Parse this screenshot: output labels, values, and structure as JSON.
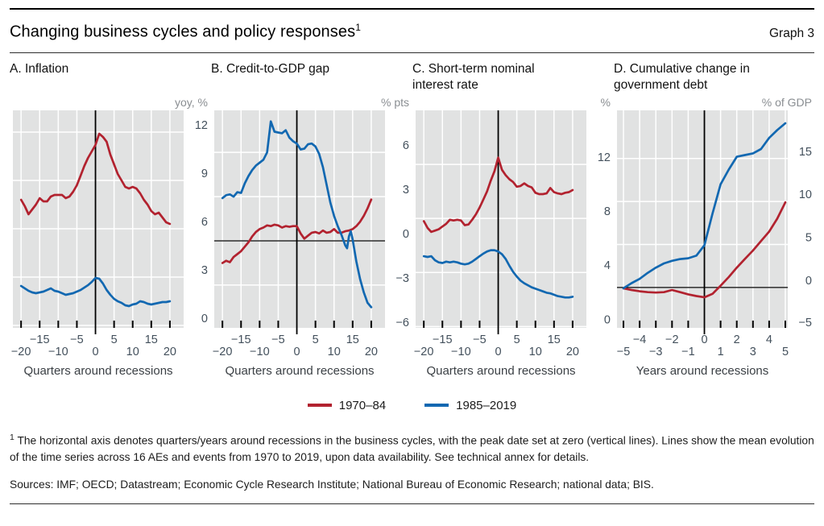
{
  "header": {
    "title": "Changing business cycles and policy responses",
    "title_note": "1",
    "graph_label": "Graph 3"
  },
  "legend": {
    "items": [
      {
        "label": "1970–84",
        "color": "#b2222f"
      },
      {
        "label": "1985–2019",
        "color": "#1268b1"
      }
    ]
  },
  "footnote": {
    "marker": "1",
    "text": "The horizontal axis denotes quarters/years around recessions in the business cycles, with the peak date set at zero (vertical lines). Lines show the mean evolution of the time series across 16 AEs and events from 1970 to 2019, upon data availability. See technical annex for details."
  },
  "sources_line": "Sources: IMF; OECD; Datastream; Economic Cycle Research Institute; National Bureau of Economic Research; national data; BIS.",
  "style": {
    "plot_bg": "#e1e2e2",
    "grid": "#ffffff",
    "axis_label": "#43505c",
    "unit_label": "#8a8e92",
    "red": "#b2222f",
    "blue": "#1268b1"
  },
  "chart_data": [
    {
      "id": "A",
      "type": "line",
      "title": "A. Inflation",
      "unit": "yoy, %",
      "xlabel": "Quarters around recessions",
      "xlim": [
        -22.2,
        23.7
      ],
      "ylim": [
        -0.15,
        13.35
      ],
      "yticks": [
        0,
        3,
        6,
        9,
        12
      ],
      "xticks": [
        -20,
        -15,
        -10,
        -5,
        0,
        5,
        10,
        15,
        20
      ],
      "xtick_rows": [
        [
          -15,
          -5,
          5,
          15
        ],
        [
          -20,
          -10,
          0,
          10,
          20
        ]
      ],
      "zero_line": false,
      "series": [
        {
          "name": "1970–84",
          "color": "#b2222f",
          "x": [
            -20,
            -19,
            -18,
            -17,
            -16,
            -15,
            -14,
            -13,
            -12,
            -11,
            -10,
            -9,
            -8,
            -7,
            -6,
            -5,
            -4,
            -3,
            -2,
            -1,
            0,
            1,
            2,
            3,
            4,
            5,
            6,
            7,
            8,
            9,
            10,
            11,
            12,
            13,
            14,
            15,
            16,
            17,
            18,
            19,
            20
          ],
          "y": [
            7.8,
            7.4,
            6.9,
            7.2,
            7.5,
            7.9,
            7.7,
            7.7,
            8.0,
            8.1,
            8.1,
            8.1,
            7.9,
            8.0,
            8.3,
            8.7,
            9.3,
            9.9,
            10.4,
            10.8,
            11.2,
            11.9,
            11.7,
            11.4,
            10.6,
            10.0,
            9.4,
            9.0,
            8.6,
            8.5,
            8.6,
            8.5,
            8.2,
            7.8,
            7.5,
            7.1,
            6.9,
            7.0,
            6.7,
            6.4,
            6.3
          ]
        },
        {
          "name": "1985–2019",
          "color": "#1268b1",
          "x": [
            -20,
            -19,
            -18,
            -17,
            -16,
            -15,
            -14,
            -13,
            -12,
            -11,
            -10,
            -9,
            -8,
            -7,
            -6,
            -5,
            -4,
            -3,
            -2,
            -1,
            0,
            1,
            2,
            3,
            4,
            5,
            6,
            7,
            8,
            9,
            10,
            11,
            12,
            13,
            14,
            15,
            16,
            17,
            18,
            19,
            20
          ],
          "y": [
            2.45,
            2.3,
            2.15,
            2.05,
            2.0,
            2.05,
            2.1,
            2.2,
            2.3,
            2.15,
            2.1,
            2.0,
            1.9,
            1.95,
            2.0,
            2.1,
            2.2,
            2.35,
            2.5,
            2.7,
            2.95,
            2.9,
            2.6,
            2.2,
            1.9,
            1.65,
            1.5,
            1.4,
            1.25,
            1.2,
            1.3,
            1.35,
            1.5,
            1.45,
            1.35,
            1.3,
            1.35,
            1.4,
            1.45,
            1.45,
            1.5
          ]
        }
      ]
    },
    {
      "id": "B",
      "type": "line",
      "title": "B. Credit-to-GDP gap",
      "unit": "% pts",
      "xlabel": "Quarters around recessions",
      "xlim": [
        -22.2,
        23.7
      ],
      "ylim": [
        -5.9,
        8.85
      ],
      "yticks": [
        -6,
        -3,
        0,
        3,
        6
      ],
      "xticks": [
        -20,
        -15,
        -10,
        -5,
        0,
        5,
        10,
        15,
        20
      ],
      "xtick_rows": [
        [
          -15,
          -5,
          5,
          15
        ],
        [
          -20,
          -10,
          0,
          10,
          20
        ]
      ],
      "zero_line": true,
      "series": [
        {
          "name": "1970–84",
          "color": "#b2222f",
          "x": [
            -20,
            -19,
            -18,
            -17,
            -16,
            -15,
            -14,
            -13,
            -12,
            -11,
            -10,
            -9,
            -8,
            -7,
            -6,
            -5,
            -4,
            -3,
            -2,
            -1,
            0,
            1,
            2,
            3,
            4,
            5,
            6,
            7,
            8,
            9,
            10,
            11,
            12,
            13,
            14,
            15,
            16,
            17,
            18,
            19,
            20
          ],
          "y": [
            -1.5,
            -1.35,
            -1.45,
            -1.1,
            -0.9,
            -0.7,
            -0.4,
            -0.1,
            0.3,
            0.6,
            0.8,
            0.9,
            1.05,
            1.0,
            1.1,
            1.05,
            0.9,
            1.0,
            0.95,
            1.0,
            1.0,
            0.5,
            0.15,
            0.35,
            0.55,
            0.6,
            0.5,
            0.7,
            0.55,
            0.6,
            0.8,
            0.55,
            0.55,
            0.65,
            0.7,
            0.8,
            1.0,
            1.3,
            1.7,
            2.2,
            2.8
          ]
        },
        {
          "name": "1985–2019",
          "color": "#1268b1",
          "x": [
            -20,
            -19,
            -18,
            -17,
            -16,
            -15,
            -14,
            -13,
            -12,
            -11,
            -10,
            -9,
            -8,
            -7,
            -6,
            -5,
            -4,
            -3,
            -2,
            -1,
            0,
            1,
            2,
            3,
            4,
            5,
            6,
            7,
            8,
            9,
            10,
            11,
            12,
            13,
            13.5,
            14,
            14.5,
            15,
            16,
            17,
            18,
            19,
            20
          ],
          "y": [
            2.9,
            3.1,
            3.15,
            3.0,
            3.3,
            3.25,
            3.9,
            4.4,
            4.8,
            5.1,
            5.3,
            5.5,
            6.0,
            8.1,
            7.4,
            7.35,
            7.3,
            7.5,
            7.0,
            6.75,
            6.6,
            6.2,
            6.25,
            6.55,
            6.6,
            6.4,
            5.9,
            5.0,
            3.8,
            2.6,
            1.7,
            1.0,
            0.4,
            -0.3,
            -0.5,
            0.3,
            0.65,
            0.1,
            -1.4,
            -2.6,
            -3.5,
            -4.2,
            -4.5
          ]
        }
      ]
    },
    {
      "id": "C",
      "type": "line",
      "title": "C. Short-term nominal interest rate",
      "unit": "%",
      "xlabel": "Quarters around recessions",
      "xlim": [
        -22.2,
        23.7
      ],
      "ylim": [
        -0.1,
        16.0
      ],
      "yticks": [
        0,
        4,
        8,
        12
      ],
      "xticks": [
        -20,
        -15,
        -10,
        -5,
        0,
        5,
        10,
        15,
        20
      ],
      "xtick_rows": [
        [
          -15,
          -5,
          5,
          15
        ],
        [
          -20,
          -10,
          0,
          10,
          20
        ]
      ],
      "zero_line": false,
      "series": [
        {
          "name": "1970–84",
          "color": "#b2222f",
          "x": [
            -20,
            -19,
            -18,
            -17,
            -16,
            -15,
            -14,
            -13,
            -12,
            -11,
            -10,
            -9,
            -8,
            -7,
            -6,
            -5,
            -4,
            -3,
            -2,
            -1,
            0,
            1,
            2,
            3,
            4,
            5,
            6,
            7,
            8,
            9,
            10,
            11,
            12,
            13,
            14,
            15,
            16,
            17,
            18,
            19,
            20
          ],
          "y": [
            7.8,
            7.3,
            7.0,
            7.1,
            7.2,
            7.4,
            7.6,
            7.9,
            7.85,
            7.9,
            7.85,
            7.5,
            7.55,
            7.9,
            8.3,
            8.8,
            9.4,
            10.0,
            10.8,
            11.5,
            12.5,
            11.6,
            11.2,
            10.9,
            10.7,
            10.35,
            10.4,
            10.6,
            10.4,
            10.3,
            9.9,
            9.8,
            9.8,
            9.85,
            10.25,
            9.95,
            9.85,
            9.8,
            9.9,
            9.95,
            10.1
          ]
        },
        {
          "name": "1985–2019",
          "color": "#1268b1",
          "x": [
            -20,
            -19,
            -18,
            -17,
            -16,
            -15,
            -14,
            -13,
            -12,
            -11,
            -10,
            -9,
            -8,
            -7,
            -6,
            -5,
            -4,
            -3,
            -2,
            -1,
            0,
            1,
            2,
            3,
            4,
            5,
            6,
            7,
            8,
            9,
            10,
            11,
            12,
            13,
            14,
            15,
            16,
            17,
            18,
            19,
            20
          ],
          "y": [
            5.2,
            5.15,
            5.2,
            4.9,
            4.75,
            4.7,
            4.8,
            4.75,
            4.8,
            4.75,
            4.65,
            4.6,
            4.65,
            4.8,
            5.0,
            5.2,
            5.4,
            5.55,
            5.65,
            5.65,
            5.55,
            5.35,
            5.0,
            4.5,
            4.05,
            3.7,
            3.4,
            3.2,
            3.05,
            2.9,
            2.8,
            2.7,
            2.6,
            2.5,
            2.45,
            2.35,
            2.25,
            2.2,
            2.15,
            2.15,
            2.2
          ]
        }
      ]
    },
    {
      "id": "D",
      "type": "line",
      "title": "D. Cumulative change in government debt",
      "unit": "% of GDP",
      "xlabel": "Years around recessions",
      "xlim": [
        -5.4,
        5.15
      ],
      "ylim": [
        -4.7,
        20.6
      ],
      "yticks": [
        -5,
        0,
        5,
        10,
        15
      ],
      "xticks": [
        -5,
        -4,
        -3,
        -2,
        -1,
        0,
        1,
        2,
        3,
        4,
        5
      ],
      "xtick_rows": [
        [
          -4,
          -2,
          0,
          2,
          4
        ],
        [
          -5,
          -3,
          -1,
          1,
          3,
          5
        ]
      ],
      "zero_line": true,
      "series": [
        {
          "name": "1970–84",
          "color": "#b2222f",
          "x": [
            -5,
            -4.5,
            -4,
            -3.5,
            -3,
            -2.5,
            -2,
            -1.5,
            -1,
            -0.5,
            0,
            0.5,
            1,
            1.5,
            2,
            2.5,
            3,
            3.5,
            4,
            4.5,
            5
          ],
          "y": [
            -0.1,
            -0.3,
            -0.45,
            -0.55,
            -0.6,
            -0.55,
            -0.3,
            -0.55,
            -0.8,
            -1.0,
            -1.15,
            -0.75,
            0.2,
            1.2,
            2.3,
            3.3,
            4.3,
            5.4,
            6.5,
            8.0,
            9.9
          ]
        },
        {
          "name": "1985–2019",
          "color": "#1268b1",
          "x": [
            -5,
            -4.5,
            -4,
            -3.5,
            -3,
            -2.5,
            -2,
            -1.5,
            -1,
            -0.5,
            0,
            0.5,
            1,
            1.5,
            2,
            2.5,
            3,
            3.5,
            4,
            4.5,
            5
          ],
          "y": [
            -0.1,
            0.5,
            1.0,
            1.7,
            2.3,
            2.8,
            3.1,
            3.3,
            3.4,
            3.7,
            4.9,
            8.6,
            12.0,
            13.7,
            15.2,
            15.4,
            15.6,
            16.1,
            17.4,
            18.3,
            19.1
          ]
        }
      ]
    }
  ]
}
